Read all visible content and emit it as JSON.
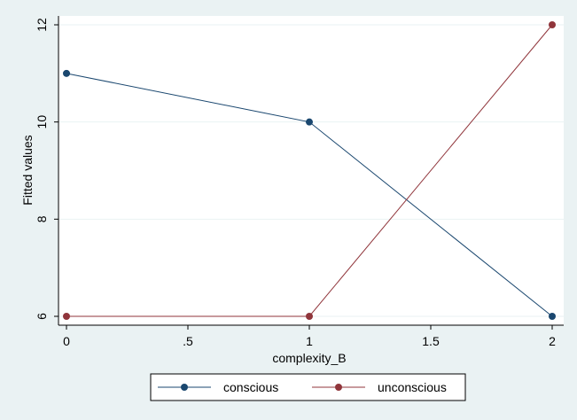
{
  "chart_data": {
    "type": "line",
    "title": "",
    "xlabel": "complexity_B",
    "ylabel": "Fitted values",
    "x": [
      0,
      1,
      2
    ],
    "xlim": [
      0,
      2
    ],
    "ylim": [
      6,
      12
    ],
    "xticks": [
      0,
      0.5,
      1,
      1.5,
      2
    ],
    "xtick_labels": [
      "0",
      ".5",
      "1",
      "1.5",
      "2"
    ],
    "yticks": [
      6,
      8,
      10,
      12
    ],
    "ytick_labels": [
      "6",
      "8",
      "10",
      "12"
    ],
    "grid": "horizontal",
    "legend_position": "bottom",
    "series": [
      {
        "name": "conscious",
        "values": [
          11,
          10,
          6
        ],
        "color": "#1a476f"
      },
      {
        "name": "unconscious",
        "values": [
          6,
          6,
          12
        ],
        "color": "#90353b"
      }
    ]
  },
  "colors": {
    "background": "#eaf2f3",
    "plot_background": "#ffffff",
    "grid": "#eaf2f3"
  }
}
